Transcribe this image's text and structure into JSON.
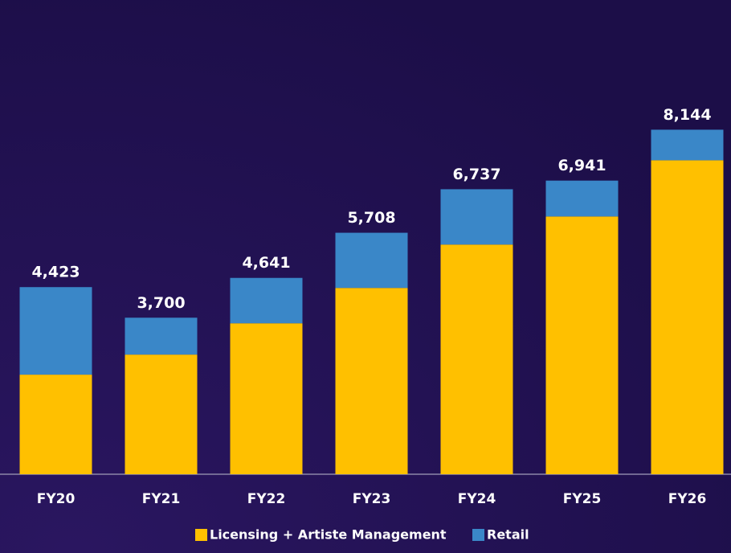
{
  "chart_data": {
    "type": "stacked_bar",
    "categories": [
      "FY20",
      "FY21",
      "FY22",
      "FY23",
      "FY24",
      "FY25",
      "FY26"
    ],
    "series": [
      {
        "name": "Licensing + Artiste Management",
        "color": "#ffc000",
        "values": [
          2354,
          2828,
          3568,
          4404,
          5429,
          6093,
          7422
        ]
      },
      {
        "name": "Retail",
        "color": "#3a87c8",
        "values": [
          2069,
          872,
          1073,
          1304,
          1308,
          848,
          722
        ]
      }
    ],
    "totals": [
      4423,
      3700,
      4641,
      5708,
      6737,
      6941,
      8144
    ],
    "total_labels": [
      "4,423",
      "3,700",
      "4,641",
      "5,708",
      "6,737",
      "6,941",
      "8,144"
    ],
    "ylim": [
      0,
      9500
    ],
    "legend": "bottom"
  }
}
